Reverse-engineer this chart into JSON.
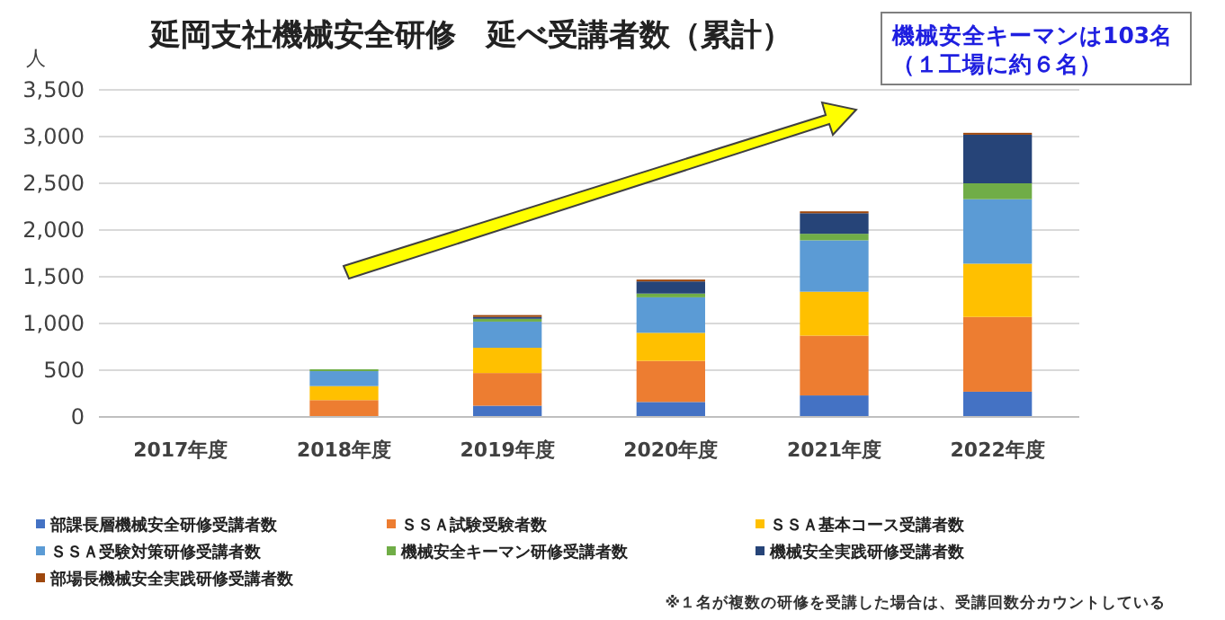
{
  "chart_data": {
    "type": "bar",
    "stacked": true,
    "title": "延岡支社機械安全研修　延べ受講者数（累計）",
    "ylabel": "人",
    "categories": [
      "2017年度",
      "2018年度",
      "2019年度",
      "2020年度",
      "2021年度",
      "2022年度"
    ],
    "series": [
      {
        "name": "部課長層機械安全研修受講者数",
        "color": "#4472c4",
        "values": [
          0,
          0,
          120,
          160,
          230,
          270
        ]
      },
      {
        "name": "ＳＳＡ試験受験者数",
        "color": "#ed7d31",
        "values": [
          0,
          180,
          350,
          440,
          640,
          800
        ]
      },
      {
        "name": "ＳＳＡ基本コース受講者数",
        "color": "#ffc000",
        "values": [
          0,
          150,
          270,
          300,
          470,
          570
        ]
      },
      {
        "name": "ＳＳＡ受験対策研修受講者数",
        "color": "#5b9bd5",
        "values": [
          0,
          160,
          280,
          380,
          550,
          690
        ]
      },
      {
        "name": "機械安全キーマン研修受講者数",
        "color": "#70ad47",
        "values": [
          0,
          20,
          30,
          40,
          70,
          170
        ]
      },
      {
        "name": "機械安全実践研修受講者数",
        "color": "#264478",
        "values": [
          0,
          0,
          20,
          130,
          220,
          520
        ]
      },
      {
        "name": "部場長機械安全実践研修受講者数",
        "color": "#9e480e",
        "values": [
          0,
          0,
          20,
          20,
          20,
          20
        ]
      }
    ],
    "ylim": [
      0,
      3500
    ],
    "yticks": [
      {
        "value": 0,
        "label": "0"
      },
      {
        "value": 500,
        "label": "500"
      },
      {
        "value": 1000,
        "label": "1,000"
      },
      {
        "value": 1500,
        "label": "1,500"
      },
      {
        "value": 2000,
        "label": "2,000"
      },
      {
        "value": 2500,
        "label": "2,500"
      },
      {
        "value": 3000,
        "label": "3,000"
      },
      {
        "value": 3500,
        "label": "3,500"
      }
    ],
    "grid": "y",
    "legend": "bottom",
    "annotations": [
      "機械安全キーマンは103名",
      "（１工場に約６名）",
      "※１名が複数の研修を受講した場合は、受講回数分カウントしている"
    ]
  }
}
